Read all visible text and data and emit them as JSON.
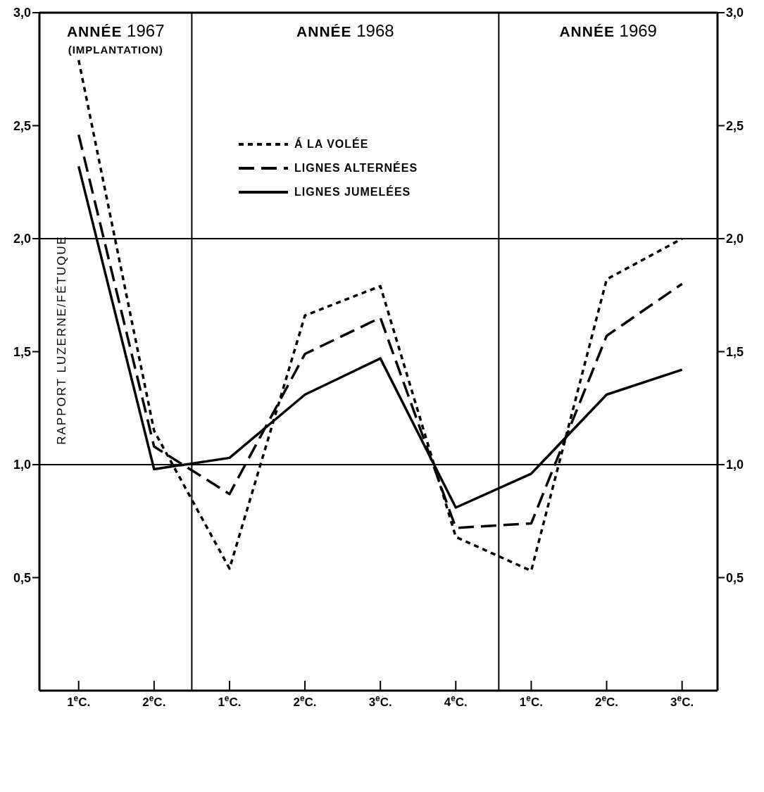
{
  "chart_data": {
    "type": "line",
    "ylabel": "RAPPORT LUZERNE/FÉTUQUE",
    "categories": [
      "1$^{e}$C.",
      "2$^{e}$C.",
      "1$^{e}$C.",
      "2$^{e}$C.",
      "3$^{e}$C.",
      "4$^{e}$C.",
      "1$^{e}$C.",
      "2$^{e}$C.",
      "3$^{e}$C."
    ],
    "ylim": [
      0,
      3.0
    ],
    "yticks": [
      {
        "value": 0.5,
        "label": "0,5"
      },
      {
        "value": 1.0,
        "label": "1,0"
      },
      {
        "value": 1.5,
        "label": "1,5"
      },
      {
        "value": 2.0,
        "label": "2,0"
      },
      {
        "value": 2.5,
        "label": "2,5"
      },
      {
        "value": 3.0,
        "label": "3,0"
      }
    ],
    "y2lim": [
      0,
      3.0
    ],
    "y2ticks": [
      {
        "value": 0.5,
        "label": "0,5"
      },
      {
        "value": 1.0,
        "label": "1,0"
      },
      {
        "value": 1.5,
        "label": "1,5"
      },
      {
        "value": 2.0,
        "label": "2,0"
      },
      {
        "value": 2.5,
        "label": "2,5"
      },
      {
        "value": 3.0,
        "label": "3,0"
      }
    ],
    "series": [
      {
        "name": "Á LA VOLÉE",
        "color": "#000000",
        "line_style": "dotted",
        "values": [
          2.79,
          1.15,
          0.54,
          1.66,
          1.79,
          0.68,
          0.53,
          1.82,
          2.0
        ]
      },
      {
        "name": "LIGNES ALTERNÉES",
        "color": "#000000",
        "line_style": "dashed",
        "values": [
          2.46,
          1.08,
          0.87,
          1.49,
          1.65,
          0.72,
          0.74,
          1.57,
          1.8
        ]
      },
      {
        "name": "LIGNES JUMELÉES",
        "color": "#000000",
        "line_style": "solid",
        "values": [
          2.32,
          0.98,
          1.03,
          1.31,
          1.47,
          0.81,
          0.96,
          1.31,
          1.42
        ]
      }
    ],
    "annotations": [
      "ANNÉE 1967\n(IMPLANTATION)",
      "ANNÉE 1968",
      "ANNÉE 1969"
    ],
    "ref_lines": [
      {
        "axis": "y",
        "value": 1.0,
        "color": "#000000"
      },
      {
        "axis": "y",
        "value": 2.0,
        "color": "#000000"
      }
    ],
    "legend": "top",
    "marker": "none"
  }
}
